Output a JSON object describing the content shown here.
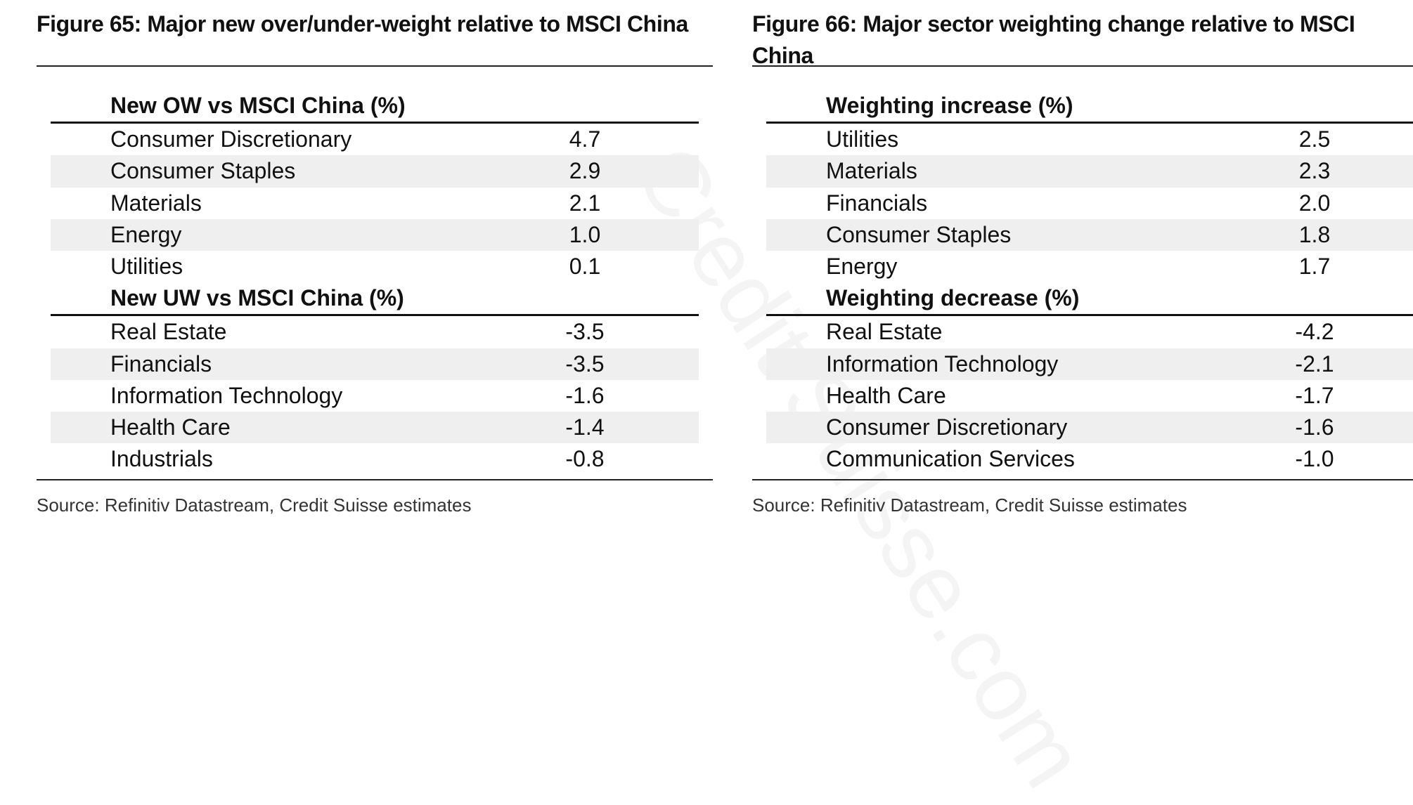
{
  "watermark": "Credit Suisse.com",
  "figures": [
    {
      "title": "Figure 65: Major new over/under-weight relative to MSCI China",
      "source": "Source: Refinitiv Datastream, Credit Suisse estimates",
      "rows": [
        {
          "label": "New OW vs MSCI China (%)",
          "value": "",
          "header": true
        },
        {
          "label": "Consumer Discretionary",
          "value": "4.7"
        },
        {
          "label": "Consumer Staples",
          "value": "2.9"
        },
        {
          "label": "Materials",
          "value": "2.1"
        },
        {
          "label": "Energy",
          "value": "1.0"
        },
        {
          "label": "Utilities",
          "value": "0.1"
        },
        {
          "label": "New UW vs MSCI China (%)",
          "value": "",
          "header": true
        },
        {
          "label": "Real Estate",
          "value": "-3.5"
        },
        {
          "label": "Financials",
          "value": "-3.5"
        },
        {
          "label": "Information Technology",
          "value": "-1.6"
        },
        {
          "label": "Health Care",
          "value": "-1.4"
        },
        {
          "label": "Industrials",
          "value": "-0.8"
        }
      ]
    },
    {
      "title": "Figure 66: Major sector weighting change relative to MSCI China",
      "source": "Source: Refinitiv Datastream, Credit Suisse estimates",
      "rows": [
        {
          "label": "Weighting increase (%)",
          "value": "",
          "header": true
        },
        {
          "label": "Utilities",
          "value": "2.5"
        },
        {
          "label": "Materials",
          "value": "2.3"
        },
        {
          "label": "Financials",
          "value": "2.0"
        },
        {
          "label": "Consumer Staples",
          "value": "1.8"
        },
        {
          "label": "Energy",
          "value": "1.7"
        },
        {
          "label": "Weighting decrease (%)",
          "value": "",
          "header": true
        },
        {
          "label": "Real Estate",
          "value": "-4.2"
        },
        {
          "label": "Information Technology",
          "value": "-2.1"
        },
        {
          "label": "Health Care",
          "value": "-1.7"
        },
        {
          "label": "Consumer Discretionary",
          "value": "-1.6"
        },
        {
          "label": "Communication Services",
          "value": "-1.0"
        }
      ]
    }
  ]
}
